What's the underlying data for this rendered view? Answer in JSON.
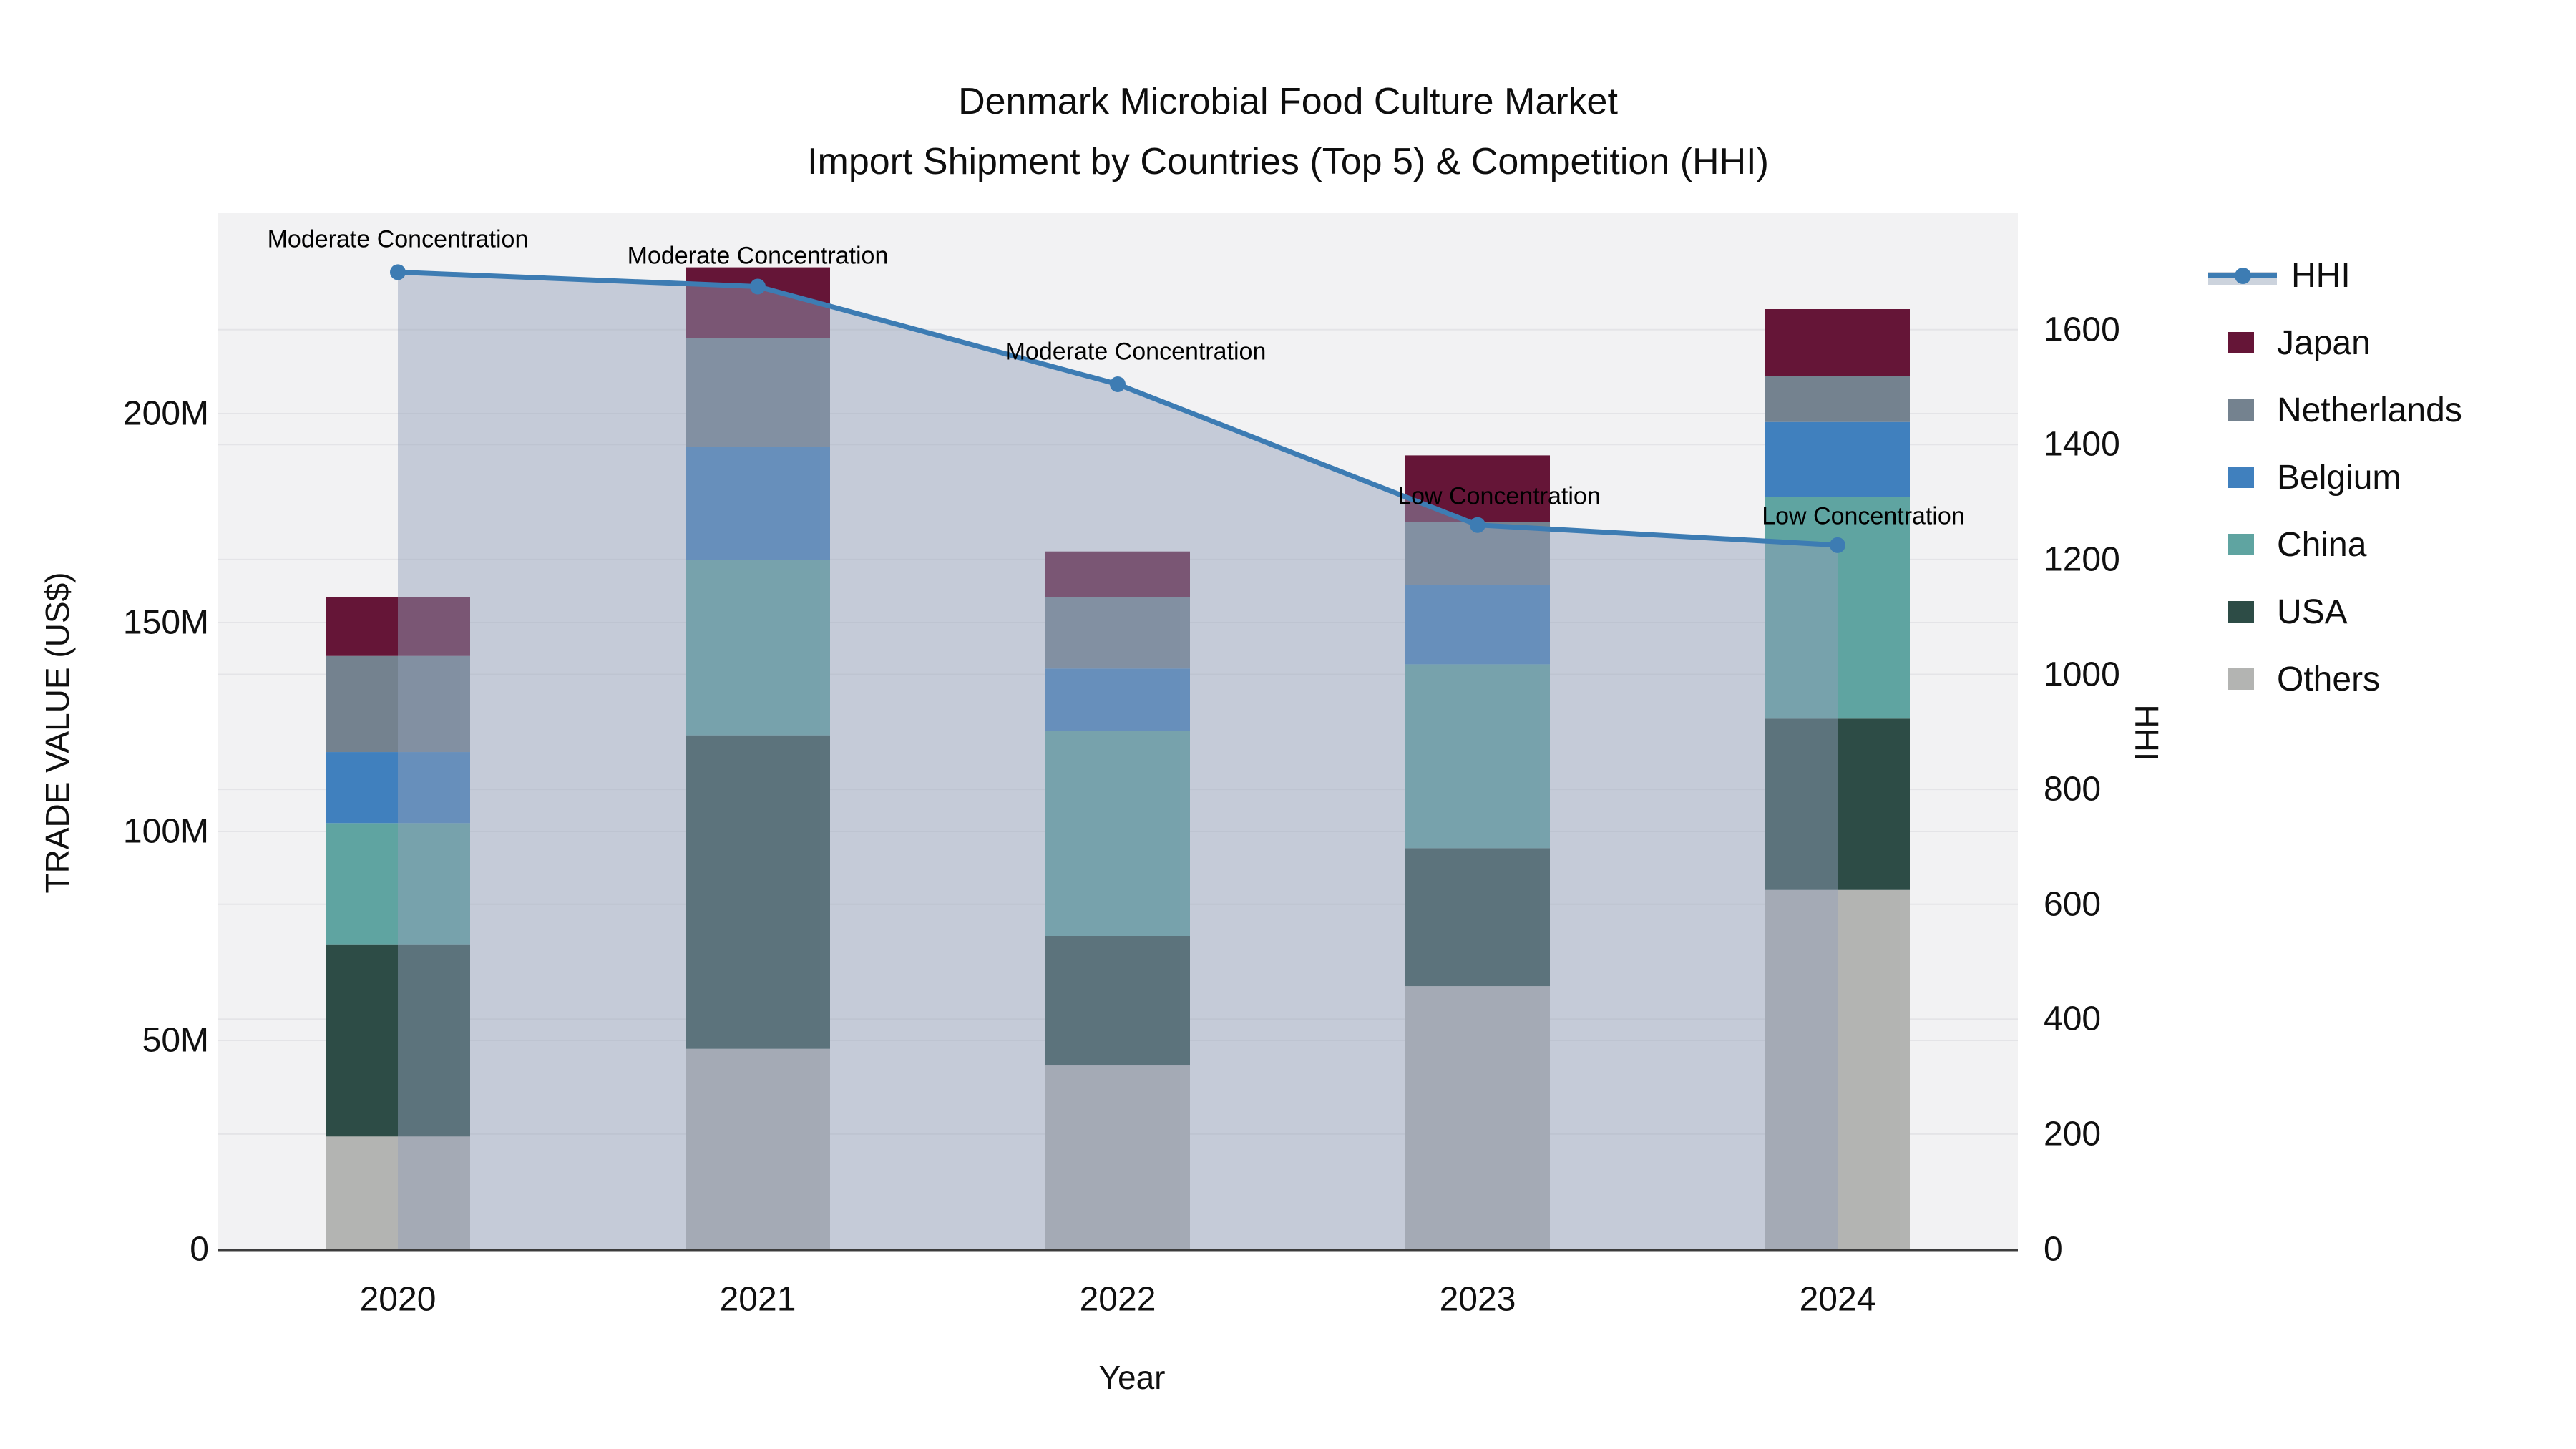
{
  "title": {
    "line1": "Denmark Microbial Food Culture Market",
    "line2": "Import Shipment by Countries (Top 5) & Competition (HHI)"
  },
  "chart_data": {
    "type": "bar",
    "subtype": "stacked-bars-with-line-overlay",
    "categories": [
      "2020",
      "2021",
      "2022",
      "2023",
      "2024"
    ],
    "series": [
      {
        "name": "Others",
        "color": "#b3b4b2",
        "values": [
          27,
          48,
          44,
          63,
          86
        ]
      },
      {
        "name": "USA",
        "color": "#2d4c46",
        "values": [
          46,
          75,
          31,
          33,
          41
        ]
      },
      {
        "name": "China",
        "color": "#5fa4a1",
        "values": [
          29,
          42,
          49,
          44,
          53
        ]
      },
      {
        "name": "Belgium",
        "color": "#4080be",
        "values": [
          17,
          27,
          15,
          19,
          18
        ]
      },
      {
        "name": "Netherlands",
        "color": "#74828f",
        "values": [
          23,
          26,
          17,
          15,
          11
        ]
      },
      {
        "name": "Japan",
        "color": "#651537",
        "values": [
          14,
          17,
          11,
          16,
          16
        ]
      }
    ],
    "line_series": {
      "name": "HHI",
      "color": "#3d7cb3",
      "fill_color": "rgba(146,160,185,0.47)",
      "values": [
        1700,
        1675,
        1505,
        1260,
        1225
      ]
    },
    "annotations": [
      {
        "year": "2020",
        "text": "Moderate Concentration"
      },
      {
        "year": "2021",
        "text": "Moderate Concentration"
      },
      {
        "year": "2022",
        "text": "Moderate Concentration"
      },
      {
        "year": "2023",
        "text": "Low Concentration"
      },
      {
        "year": "2024",
        "text": "Low Concentration"
      }
    ],
    "left_axis": {
      "title": "TRADE VALUE (US$)",
      "tick_labels": [
        "0",
        "50M",
        "100M",
        "150M",
        "200M"
      ],
      "tick_values": [
        0,
        50,
        100,
        150,
        200
      ],
      "units": "millions USD"
    },
    "right_axis": {
      "title": "HHI",
      "tick_values": [
        0,
        200,
        400,
        600,
        800,
        1000,
        1200,
        1400,
        1600
      ]
    },
    "x_axis": {
      "title": "Year"
    },
    "legend_order": [
      "HHI",
      "Japan",
      "Netherlands",
      "Belgium",
      "China",
      "USA",
      "Others"
    ],
    "grid": true,
    "plot_bg": "#f2f2f3",
    "grid_color": "#e4e4e7",
    "axis_line_color": "#3c3c3c"
  }
}
